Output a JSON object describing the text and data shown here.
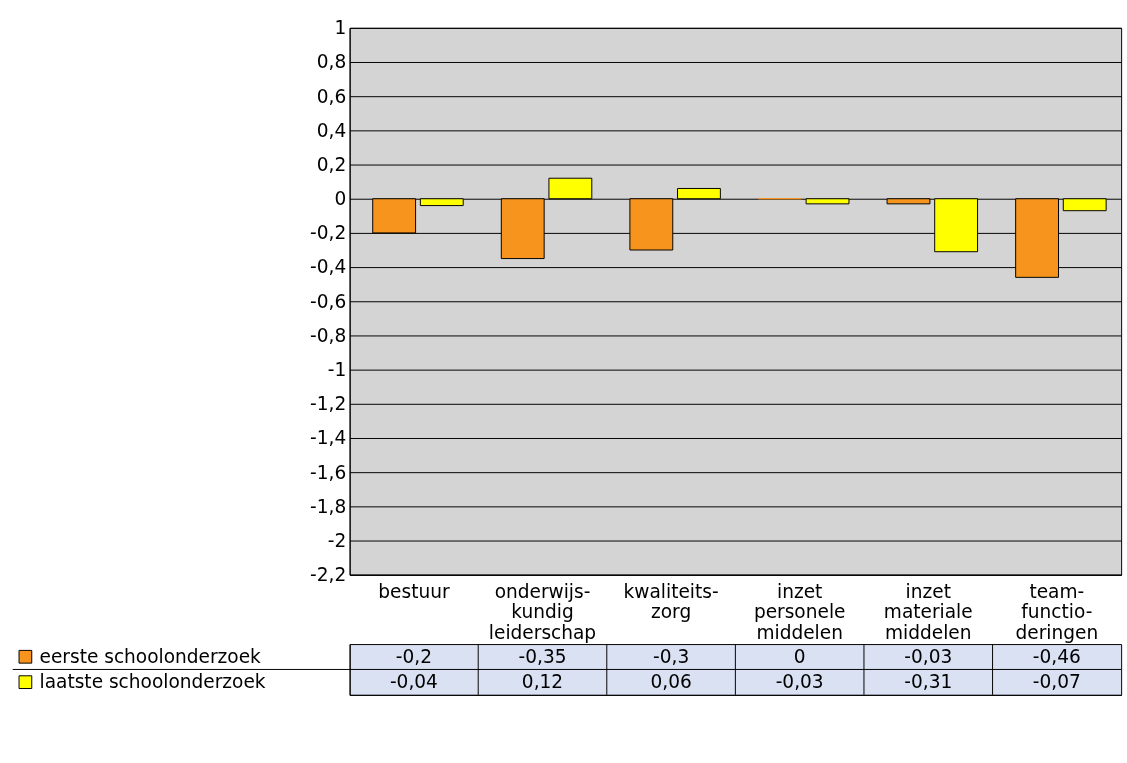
{
  "chart_data": {
    "type": "bar",
    "categories": [
      "bestuur",
      "onderwijs- kundig leiderschap",
      "kwaliteits- zorg",
      "inzet personele middelen",
      "inzet materiale middelen",
      "team- functio- deringen"
    ],
    "series": [
      {
        "name": "eerste schoolonderzoek",
        "color": "#f7941d",
        "values": [
          -0.2,
          -0.35,
          -0.3,
          0,
          -0.03,
          -0.46
        ],
        "value_labels": [
          "-0,2",
          "-0,35",
          "-0,3",
          "0",
          "-0,03",
          "-0,46"
        ]
      },
      {
        "name": "laatste schoolonderzoek",
        "color": "#ffff00",
        "values": [
          -0.04,
          0.12,
          0.06,
          -0.03,
          -0.31,
          -0.07
        ],
        "value_labels": [
          "-0,04",
          "0,12",
          "0,06",
          "-0,03",
          "-0,31",
          "-0,07"
        ]
      }
    ],
    "ylim": [
      -2.2,
      1
    ],
    "yticks": [
      1,
      {
        "value": 0.8,
        "label": "0,8"
      },
      {
        "value": 0.6,
        "label": "0,6"
      },
      {
        "value": 0.4,
        "label": "0,4"
      },
      {
        "value": 0.2,
        "label": "0,2"
      },
      0,
      {
        "value": -0.2,
        "label": "-0,2"
      },
      {
        "value": -0.4,
        "label": "-0,4"
      },
      {
        "value": -0.6,
        "label": "-0,6"
      },
      {
        "value": -0.8,
        "label": "-0,8"
      },
      -1,
      {
        "value": -1.2,
        "label": "-1,2"
      },
      {
        "value": -1.4,
        "label": "-1,4"
      },
      {
        "value": -1.6,
        "label": "-1,6"
      },
      {
        "value": -1.8,
        "label": "-1,8"
      },
      -2,
      {
        "value": -2.2,
        "label": "-2,2"
      }
    ],
    "grid": "y",
    "legend": "bottom"
  }
}
